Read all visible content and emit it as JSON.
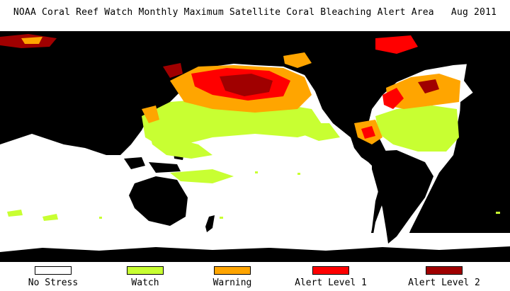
{
  "title": "NOAA Coral Reef Watch Monthly Maximum Satellite Coral Bleaching Alert Area   Aug 2011",
  "colors": {
    "land": "#000000",
    "no_stress": "#ffffff",
    "watch": "#c8ff32",
    "warning": "#ffa500",
    "alert_level_1": "#ff0000",
    "alert_level_2": "#a00000"
  },
  "legend": [
    {
      "key": "no_stress",
      "label": "No Stress",
      "color": "#ffffff"
    },
    {
      "key": "watch",
      "label": "Watch",
      "color": "#c8ff32"
    },
    {
      "key": "warning",
      "label": "Warning",
      "color": "#ffa500"
    },
    {
      "key": "alert_level_1",
      "label": "Alert Level 1",
      "color": "#ff0000"
    },
    {
      "key": "alert_level_2",
      "label": "Alert Level 2",
      "color": "#a00000"
    }
  ]
}
